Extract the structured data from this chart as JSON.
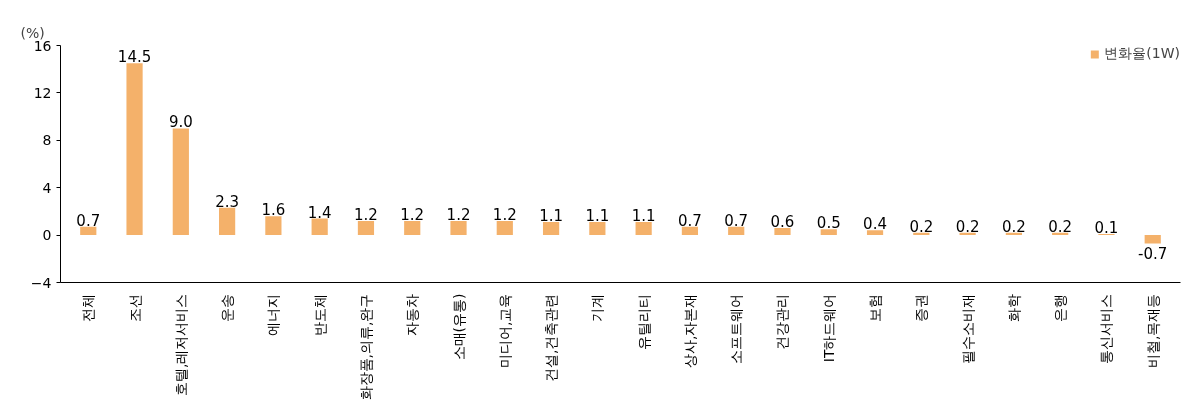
{
  "chart_data": {
    "type": "bar",
    "ylabel": "(%)",
    "categories": [
      "전체",
      "조선",
      "호텔,레저서비스",
      "운송",
      "에너지",
      "반도체",
      "화장품,의류,완구",
      "자동차",
      "소매(유통)",
      "미디어,교육",
      "건설,건축관련",
      "기계",
      "유틸리티",
      "상사,자본재",
      "소프트웨어",
      "건강관리",
      "IT하드웨어",
      "보험",
      "증권",
      "필수소비재",
      "화학",
      "은행",
      "통신서비스",
      "비철,목재등"
    ],
    "series": [
      {
        "name": "변화율(1W)",
        "color": "#f4b16a",
        "values": [
          0.7,
          14.5,
          9.0,
          2.3,
          1.6,
          1.4,
          1.2,
          1.2,
          1.2,
          1.2,
          1.1,
          1.1,
          1.1,
          0.7,
          0.7,
          0.6,
          0.5,
          0.4,
          0.2,
          0.2,
          0.2,
          0.2,
          0.1,
          -0.7
        ],
        "value_labels": [
          "0.7",
          "14.5",
          "9.0",
          "2.3",
          "1.6",
          "1.4",
          "1.2",
          "1.2",
          "1.2",
          "1.2",
          "1.1",
          "1.1",
          "1.1",
          "0.7",
          "0.7",
          "0.6",
          "0.5",
          "0.4",
          "0.2",
          "0.2",
          "0.2",
          "0.2",
          "0.1",
          "-0.7"
        ]
      }
    ],
    "ylim": [
      -4,
      16
    ],
    "yticks": [
      -4,
      0,
      4,
      8,
      12,
      16
    ],
    "grid": false,
    "legend": "top right"
  }
}
